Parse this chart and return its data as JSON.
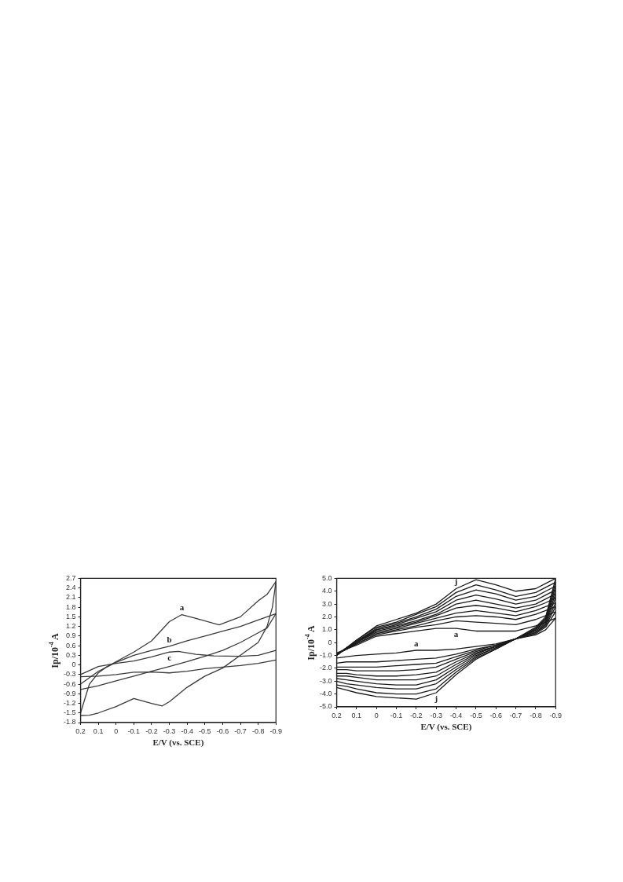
{
  "chart_data": [
    {
      "type": "line",
      "xlabel": "E/V (vs. SCE)",
      "ylabel": "Ip/10$^{-4}$ A",
      "xlim": [
        0.2,
        -0.9
      ],
      "xticks": [
        0.2,
        0.1,
        0,
        -0.1,
        -0.2,
        -0.3,
        -0.4,
        -0.5,
        -0.6,
        -0.7,
        -0.8,
        -0.9
      ],
      "ylim": [
        -1.8,
        2.7
      ],
      "yticks": [
        -1.8,
        -1.5,
        -1.2,
        -0.9,
        -0.6,
        -0.3,
        0,
        0.3,
        0.6,
        0.9,
        1.2,
        1.5,
        1.8,
        2.1,
        2.4,
        2.7
      ],
      "grid": false,
      "legend": false,
      "marker": "none",
      "annotations": [
        {
          "text": "a",
          "x": -0.37,
          "y": 1.57
        },
        {
          "text": "b",
          "x": -0.3,
          "y": 0.58
        },
        {
          "text": "c",
          "x": -0.3,
          "y": 0.4
        }
      ],
      "series": [
        {
          "color": "#3a3a3a",
          "x": [
            0.2,
            0.15,
            0.1,
            0.05,
            0,
            -0.1,
            -0.2,
            -0.3,
            -0.37,
            -0.45,
            -0.58,
            -0.7,
            -0.8,
            -0.85,
            -0.9
          ],
          "values": [
            -1.5,
            -0.6,
            -0.25,
            -0.05,
            0.1,
            0.4,
            0.75,
            1.35,
            1.57,
            1.45,
            1.25,
            1.5,
            2.0,
            2.2,
            2.6
          ]
        },
        {
          "color": "#3a3a3a",
          "x": [
            -0.9,
            -0.88,
            -0.85,
            -0.8,
            -0.7,
            -0.6,
            -0.5,
            -0.4,
            -0.3,
            -0.26,
            -0.2,
            -0.1,
            0,
            0.1,
            0.15,
            0.2
          ],
          "values": [
            2.6,
            1.8,
            1.2,
            0.7,
            0.3,
            -0.1,
            -0.35,
            -0.7,
            -1.15,
            -1.28,
            -1.2,
            -1.05,
            -1.3,
            -1.5,
            -1.57,
            -1.58
          ]
        },
        {
          "color": "#3a3a3a",
          "x": [
            0.2,
            0.1,
            0,
            -0.1,
            -0.2,
            -0.3,
            -0.4,
            -0.5,
            -0.6,
            -0.7,
            -0.8,
            -0.9
          ],
          "values": [
            -0.6,
            -0.2,
            0.08,
            0.3,
            0.45,
            0.58,
            0.75,
            0.9,
            1.05,
            1.2,
            1.4,
            1.6
          ]
        },
        {
          "color": "#3a3a3a",
          "x": [
            -0.9,
            -0.85,
            -0.8,
            -0.7,
            -0.6,
            -0.5,
            -0.4,
            -0.3,
            -0.2,
            -0.1,
            0,
            0.1,
            0.2
          ],
          "values": [
            1.6,
            1.15,
            1.0,
            0.7,
            0.45,
            0.27,
            0.1,
            -0.05,
            -0.2,
            -0.35,
            -0.5,
            -0.65,
            -0.77
          ]
        },
        {
          "color": "#3a3a3a",
          "x": [
            0.2,
            0.1,
            0,
            -0.1,
            -0.2,
            -0.3,
            -0.35,
            -0.45,
            -0.55,
            -0.7,
            -0.8,
            -0.9
          ],
          "values": [
            -0.3,
            -0.05,
            0.05,
            0.12,
            0.25,
            0.4,
            0.42,
            0.33,
            0.28,
            0.27,
            0.3,
            0.45
          ]
        },
        {
          "color": "#3a3a3a",
          "x": [
            -0.9,
            -0.8,
            -0.7,
            -0.6,
            -0.5,
            -0.4,
            -0.3,
            -0.2,
            -0.1,
            0,
            0.1,
            0.2
          ],
          "values": [
            0.15,
            0.05,
            -0.02,
            -0.07,
            -0.12,
            -0.2,
            -0.25,
            -0.22,
            -0.23,
            -0.3,
            -0.35,
            -0.37
          ]
        }
      ]
    },
    {
      "type": "line",
      "xlabel": "E/V (vs. SCE)",
      "ylabel": "Ip/10$^{-4}$ A",
      "xlim": [
        0.2,
        -0.9
      ],
      "xticks": [
        0.2,
        0.1,
        0,
        -0.1,
        -0.2,
        -0.3,
        -0.4,
        -0.5,
        -0.6,
        -0.7,
        -0.8,
        -0.9
      ],
      "ylim": [
        -5,
        5
      ],
      "yticks": [
        {
          "value": -5,
          "label": "-5.0"
        },
        {
          "value": -4,
          "label": "-4.0"
        },
        {
          "value": -3,
          "label": "-3.0"
        },
        {
          "value": -2,
          "label": "-2.0"
        },
        {
          "value": -1,
          "label": "-1.0"
        },
        0,
        {
          "value": 1,
          "label": "1.0"
        },
        {
          "value": 2,
          "label": "2.0"
        },
        {
          "value": 3,
          "label": "3.0"
        },
        {
          "value": 4,
          "label": "4.0"
        },
        {
          "value": 5,
          "label": "5.0"
        }
      ],
      "grid": false,
      "legend": false,
      "marker": "none",
      "annotations": [
        {
          "text": "j",
          "x": -0.4,
          "y": 4.2
        },
        {
          "text": "a",
          "x": -0.4,
          "y": 1.1
        },
        {
          "text": "a",
          "x": -0.2,
          "y": -0.6
        },
        {
          "text": "j",
          "x": -0.3,
          "y": -3.9
        }
      ],
      "x": [
        0.2,
        0.15,
        0.1,
        0,
        -0.1,
        -0.2,
        -0.3,
        -0.4,
        -0.5,
        -0.6,
        -0.7,
        -0.8,
        -0.85,
        -0.9
      ],
      "series": [
        {
          "color": "#1a1a1a",
          "values": [
            -0.8,
            -0.5,
            -0.2,
            0.5,
            0.7,
            0.9,
            1.1,
            1.1,
            0.9,
            0.9,
            0.9,
            1.3,
            1.6,
            1.9
          ]
        },
        {
          "color": "#1a1a1a",
          "values": [
            -0.9,
            -0.5,
            -0.1,
            0.6,
            0.9,
            1.2,
            1.4,
            1.7,
            1.6,
            1.5,
            1.4,
            1.8,
            2.1,
            2.4
          ]
        },
        {
          "color": "#1a1a1a",
          "values": [
            -0.9,
            -0.5,
            -0.1,
            0.7,
            1.0,
            1.3,
            1.7,
            2.0,
            2.1,
            2.0,
            1.8,
            2.2,
            2.5,
            2.8
          ]
        },
        {
          "color": "#1a1a1a",
          "values": [
            -0.9,
            -0.5,
            0,
            0.8,
            1.1,
            1.5,
            1.9,
            2.3,
            2.5,
            2.3,
            2.1,
            2.5,
            2.8,
            3.1
          ]
        },
        {
          "color": "#1a1a1a",
          "values": [
            -0.9,
            -0.5,
            0,
            0.9,
            1.2,
            1.6,
            2.1,
            2.7,
            2.9,
            2.7,
            2.4,
            2.8,
            3.1,
            3.5
          ]
        },
        {
          "color": "#1a1a1a",
          "values": [
            -0.9,
            -0.4,
            0,
            1.0,
            1.3,
            1.7,
            2.2,
            3.0,
            3.3,
            3.0,
            2.7,
            3.0,
            3.4,
            3.8
          ]
        },
        {
          "color": "#1a1a1a",
          "values": [
            -1.0,
            -0.4,
            0.1,
            1.0,
            1.4,
            1.9,
            2.4,
            3.3,
            3.7,
            3.4,
            3.0,
            3.3,
            3.7,
            4.1
          ]
        },
        {
          "color": "#1a1a1a",
          "values": [
            -1.0,
            -0.4,
            0.1,
            1.1,
            1.5,
            2.0,
            2.6,
            3.6,
            4.1,
            3.8,
            3.3,
            3.6,
            4.0,
            4.4
          ]
        },
        {
          "color": "#1a1a1a",
          "values": [
            -1.0,
            -0.4,
            0.2,
            1.2,
            1.6,
            2.2,
            2.8,
            3.9,
            4.5,
            4.1,
            3.6,
            3.9,
            4.3,
            4.7
          ]
        },
        {
          "color": "#1a1a1a",
          "values": [
            -1.0,
            -0.4,
            0.2,
            1.3,
            1.8,
            2.3,
            3.0,
            4.2,
            4.9,
            4.5,
            4.0,
            4.2,
            4.6,
            5.0
          ]
        },
        {
          "color": "#1a1a1a",
          "x": [
            -0.9,
            -0.85,
            -0.8,
            -0.7,
            -0.6,
            -0.5,
            -0.4,
            -0.3,
            -0.2,
            -0.1,
            0,
            0.1,
            0.15,
            0.2
          ],
          "values": [
            1.9,
            1.0,
            0.6,
            0.3,
            -0.1,
            -0.3,
            -0.5,
            -0.6,
            -0.6,
            -0.8,
            -0.9,
            -1.0,
            -1.1,
            -1.2
          ]
        },
        {
          "color": "#1a1a1a",
          "x": [
            -0.9,
            -0.85,
            -0.8,
            -0.7,
            -0.6,
            -0.5,
            -0.4,
            -0.3,
            -0.2,
            -0.1,
            0,
            0.1,
            0.15,
            0.2
          ],
          "values": [
            2.4,
            1.2,
            0.7,
            0.3,
            -0.2,
            -0.5,
            -0.9,
            -1.2,
            -1.3,
            -1.4,
            -1.5,
            -1.5,
            -1.5,
            -1.6
          ]
        },
        {
          "color": "#1a1a1a",
          "x": [
            -0.9,
            -0.85,
            -0.8,
            -0.7,
            -0.6,
            -0.5,
            -0.4,
            -0.3,
            -0.2,
            -0.1,
            0,
            0.1,
            0.15,
            0.2
          ],
          "values": [
            2.8,
            1.3,
            0.8,
            0.3,
            -0.2,
            -0.6,
            -1.1,
            -1.6,
            -1.7,
            -1.8,
            -1.9,
            -1.9,
            -1.9,
            -1.9
          ]
        },
        {
          "color": "#1a1a1a",
          "x": [
            -0.9,
            -0.85,
            -0.8,
            -0.7,
            -0.6,
            -0.5,
            -0.4,
            -0.3,
            -0.2,
            -0.1,
            0,
            0.1,
            0.15,
            0.2
          ],
          "values": [
            3.1,
            1.4,
            0.8,
            0.3,
            -0.3,
            -0.7,
            -1.3,
            -1.9,
            -2.1,
            -2.2,
            -2.2,
            -2.2,
            -2.1,
            -2.1
          ]
        },
        {
          "color": "#1a1a1a",
          "x": [
            -0.9,
            -0.85,
            -0.8,
            -0.7,
            -0.6,
            -0.5,
            -0.4,
            -0.3,
            -0.2,
            -0.1,
            0,
            0.1,
            0.15,
            0.2
          ],
          "values": [
            3.5,
            1.5,
            0.9,
            0.3,
            -0.3,
            -0.8,
            -1.5,
            -2.3,
            -2.5,
            -2.6,
            -2.6,
            -2.5,
            -2.4,
            -2.4
          ]
        },
        {
          "color": "#1a1a1a",
          "x": [
            -0.9,
            -0.85,
            -0.8,
            -0.7,
            -0.6,
            -0.5,
            -0.4,
            -0.3,
            -0.2,
            -0.1,
            0,
            0.1,
            0.15,
            0.2
          ],
          "values": [
            3.8,
            1.6,
            1.0,
            0.3,
            -0.3,
            -0.9,
            -1.7,
            -2.6,
            -2.9,
            -2.9,
            -2.9,
            -2.7,
            -2.6,
            -2.6
          ]
        },
        {
          "color": "#1a1a1a",
          "x": [
            -0.9,
            -0.85,
            -0.8,
            -0.7,
            -0.6,
            -0.5,
            -0.4,
            -0.3,
            -0.2,
            -0.1,
            0,
            0.1,
            0.15,
            0.2
          ],
          "values": [
            4.1,
            1.7,
            1.0,
            0.3,
            -0.4,
            -1.0,
            -1.9,
            -2.9,
            -3.3,
            -3.3,
            -3.2,
            -3.0,
            -2.9,
            -2.8
          ]
        },
        {
          "color": "#1a1a1a",
          "x": [
            -0.9,
            -0.85,
            -0.8,
            -0.7,
            -0.6,
            -0.5,
            -0.4,
            -0.3,
            -0.2,
            -0.1,
            0,
            0.1,
            0.15,
            0.2
          ],
          "values": [
            4.4,
            1.8,
            1.1,
            0.3,
            -0.4,
            -1.1,
            -2.1,
            -3.2,
            -3.6,
            -3.6,
            -3.5,
            -3.3,
            -3.2,
            -3.0
          ]
        },
        {
          "color": "#1a1a1a",
          "x": [
            -0.9,
            -0.85,
            -0.8,
            -0.7,
            -0.6,
            -0.5,
            -0.4,
            -0.3,
            -0.2,
            -0.1,
            0,
            0.1,
            0.15,
            0.2
          ],
          "values": [
            4.7,
            1.9,
            1.1,
            0.3,
            -0.5,
            -1.2,
            -2.3,
            -3.6,
            -4.0,
            -4.0,
            -3.9,
            -3.6,
            -3.4,
            -3.3
          ]
        },
        {
          "color": "#1a1a1a",
          "x": [
            -0.9,
            -0.85,
            -0.8,
            -0.7,
            -0.6,
            -0.5,
            -0.4,
            -0.3,
            -0.2,
            -0.1,
            0,
            0.1,
            0.15,
            0.2
          ],
          "values": [
            5.0,
            2.0,
            1.2,
            0.3,
            -0.5,
            -1.3,
            -2.5,
            -3.9,
            -4.4,
            -4.3,
            -4.2,
            -3.9,
            -3.7,
            -3.5
          ]
        }
      ]
    }
  ]
}
